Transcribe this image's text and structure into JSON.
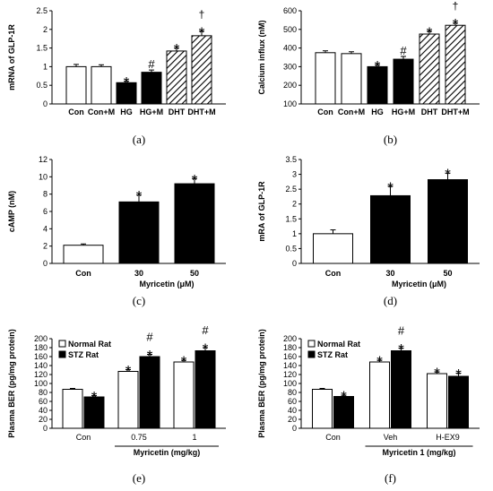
{
  "chart_data": [
    {
      "type": "bar",
      "panel": "(a)",
      "ylabel": "mRNA of GLP-1R",
      "ylim": [
        0,
        2.5
      ],
      "yticks": [
        0,
        0.5,
        1,
        1.5,
        2,
        2.5
      ],
      "ytick_labels": [
        "0",
        "0.5",
        "1",
        "1.5",
        "2",
        "2.5"
      ],
      "categories": [
        "Con",
        "Con+M",
        "HG",
        "HG+M",
        "DHT",
        "DHT+M"
      ],
      "values": [
        1.0,
        1.0,
        0.57,
        0.85,
        1.42,
        1.83
      ],
      "errors": [
        0.06,
        0.05,
        0.04,
        0.06,
        0.08,
        0.12
      ],
      "styles": [
        "white",
        "white",
        "black",
        "black",
        "hatch",
        "hatch"
      ],
      "annotations": [
        [],
        [],
        [
          "*"
        ],
        [
          "#"
        ],
        [
          "*"
        ],
        [
          "†",
          "*"
        ]
      ]
    },
    {
      "type": "bar",
      "panel": "(b)",
      "ylabel": "Calcium influx (nM)",
      "ylim": [
        100,
        600
      ],
      "yticks": [
        100,
        200,
        300,
        400,
        500,
        600
      ],
      "ytick_labels": [
        "100",
        "200",
        "300",
        "400",
        "500",
        "600"
      ],
      "categories": [
        "Con",
        "Con+M",
        "HG",
        "HG+M",
        "DHT",
        "DHT+M"
      ],
      "values": [
        375,
        370,
        300,
        340,
        475,
        522
      ],
      "errors": [
        10,
        10,
        10,
        15,
        15,
        12
      ],
      "styles": [
        "white",
        "white",
        "black",
        "black",
        "hatch",
        "hatch"
      ],
      "annotations": [
        [],
        [],
        [
          "*"
        ],
        [
          "#"
        ],
        [
          "*"
        ],
        [
          "†",
          "*"
        ]
      ]
    },
    {
      "type": "bar",
      "panel": "(c)",
      "ylabel": "cAMP (nM)",
      "xlabel": "Myricetin (μM)",
      "ylim": [
        0,
        12
      ],
      "yticks": [
        0,
        2,
        4,
        6,
        8,
        10,
        12
      ],
      "ytick_labels": [
        "0",
        "2",
        "4",
        "6",
        "8",
        "10",
        "12"
      ],
      "categories": [
        "Con",
        "30",
        "50"
      ],
      "values": [
        2.1,
        7.1,
        9.2
      ],
      "errors": [
        0.15,
        0.8,
        0.6
      ],
      "styles": [
        "white",
        "black",
        "black"
      ],
      "annotations": [
        [],
        [
          "*"
        ],
        [
          "*"
        ]
      ]
    },
    {
      "type": "bar",
      "panel": "(d)",
      "ylabel": "mRA of GLP-1R",
      "xlabel": "Myricetin (μM)",
      "ylim": [
        0,
        3.5
      ],
      "yticks": [
        0,
        0.5,
        1,
        1.5,
        2,
        2.5,
        3,
        3.5
      ],
      "ytick_labels": [
        "0",
        "0.5",
        "1",
        "1.5",
        "2",
        "2.5",
        "3",
        "3.5"
      ],
      "categories": [
        "Con",
        "30",
        "50"
      ],
      "values": [
        1.0,
        2.28,
        2.82
      ],
      "errors": [
        0.13,
        0.32,
        0.22
      ],
      "styles": [
        "white",
        "black",
        "black"
      ],
      "annotations": [
        [],
        [
          "*"
        ],
        [
          "*"
        ]
      ]
    },
    {
      "type": "bar",
      "panel": "(e)",
      "ylabel": "Plasma BER (pg/mg protein)",
      "xlabel": "Myricetin (mg/kg)",
      "ylim": [
        0,
        200
      ],
      "yticks": [
        0,
        20,
        40,
        60,
        80,
        100,
        120,
        140,
        160,
        180,
        200
      ],
      "ytick_labels": [
        "0",
        "20",
        "40",
        "60",
        "80",
        "100",
        "120",
        "140",
        "160",
        "180",
        "200"
      ],
      "categories": [
        "Con",
        "0.75",
        "1"
      ],
      "legend": [
        "Normal Rat",
        "STZ Rat"
      ],
      "series": [
        {
          "values": [
            87,
            127,
            148
          ],
          "errors": [
            2,
            4,
            4
          ],
          "annotations": [
            [],
            [
              "*"
            ],
            [
              "*"
            ]
          ]
        },
        {
          "values": [
            70,
            160,
            173
          ],
          "errors": [
            3,
            5,
            7
          ],
          "annotations": [
            [
              "*"
            ],
            [
              "#",
              "*"
            ],
            [
              "#",
              "*"
            ]
          ]
        }
      ]
    },
    {
      "type": "bar",
      "panel": "(f)",
      "ylabel": "Plasma BER (pg/mg protein)",
      "xlabel": "Myricetin 1 (mg/kg)",
      "ylim": [
        0,
        200
      ],
      "yticks": [
        0,
        20,
        40,
        60,
        80,
        100,
        120,
        140,
        160,
        180,
        200
      ],
      "ytick_labels": [
        "0",
        "20",
        "40",
        "60",
        "80",
        "100",
        "120",
        "140",
        "160",
        "180",
        "200"
      ],
      "categories": [
        "Con",
        "Veh",
        "H-EX9"
      ],
      "legend": [
        "Normal Rat",
        "STZ Rat"
      ],
      "series": [
        {
          "values": [
            87,
            148,
            122
          ],
          "errors": [
            2,
            4,
            4
          ],
          "annotations": [
            [],
            [
              "*"
            ],
            [
              "*"
            ]
          ]
        },
        {
          "values": [
            71,
            173,
            116
          ],
          "errors": [
            3,
            6,
            7
          ],
          "annotations": [
            [
              "*"
            ],
            [
              "#",
              "*"
            ],
            [
              "*"
            ]
          ]
        }
      ]
    }
  ]
}
